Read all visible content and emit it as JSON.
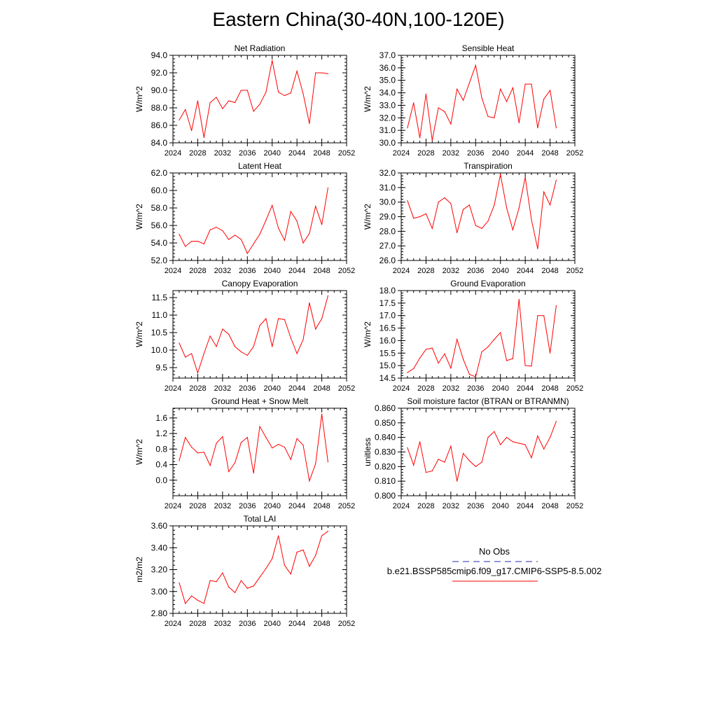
{
  "title": "Eastern China(30-40N,100-120E)",
  "legend": {
    "obs_label": "No Obs",
    "obs_color": "#2a2ab0",
    "model_label": "b.e21.BSSP585cmip6.f09_g17.CMIP6-SSP5-8.5.002",
    "model_color": "#ff0000"
  },
  "chart_data": [
    {
      "type": "line",
      "title": "Net Radiation",
      "ylabel": "W/m^2",
      "xlim": [
        2024,
        2052
      ],
      "xticks": [
        "2024",
        "2028",
        "2032",
        "2036",
        "2040",
        "2044",
        "2048",
        "2052"
      ],
      "ylim": [
        84.0,
        94.0
      ],
      "yticks": [
        "84.0",
        "86.0",
        "88.0",
        "90.0",
        "92.0",
        "94.0"
      ],
      "x": [
        2025,
        2026,
        2027,
        2028,
        2029,
        2030,
        2031,
        2032,
        2033,
        2034,
        2035,
        2036,
        2037,
        2038,
        2039,
        2040,
        2041,
        2042,
        2043,
        2044,
        2045,
        2046,
        2047,
        2048,
        2049
      ],
      "values": [
        86.6,
        87.8,
        85.4,
        88.8,
        84.6,
        88.6,
        89.2,
        87.9,
        88.8,
        88.6,
        90.0,
        90.0,
        87.6,
        88.4,
        89.8,
        93.4,
        89.8,
        89.4,
        89.7,
        92.2,
        89.6,
        86.2,
        92.0,
        92.0,
        91.9
      ],
      "color": "#ff0000"
    },
    {
      "type": "line",
      "title": "Sensible Heat",
      "ylabel": "W/m^2",
      "xlim": [
        2024,
        2052
      ],
      "xticks": [
        "2024",
        "2028",
        "2032",
        "2036",
        "2040",
        "2044",
        "2048",
        "2052"
      ],
      "ylim": [
        30.0,
        37.0
      ],
      "yticks": [
        "30.0",
        "31.0",
        "32.0",
        "33.0",
        "34.0",
        "35.0",
        "36.0",
        "37.0"
      ],
      "x": [
        2025,
        2026,
        2027,
        2028,
        2029,
        2030,
        2031,
        2032,
        2033,
        2034,
        2035,
        2036,
        2037,
        2038,
        2039,
        2040,
        2041,
        2042,
        2043,
        2044,
        2045,
        2046,
        2047,
        2048,
        2049
      ],
      "values": [
        31.2,
        33.2,
        30.4,
        33.9,
        30.2,
        32.8,
        32.5,
        31.5,
        34.3,
        33.4,
        34.8,
        36.2,
        33.6,
        32.1,
        32.0,
        34.3,
        33.3,
        34.4,
        31.6,
        34.7,
        34.7,
        31.2,
        33.5,
        34.2,
        31.2
      ],
      "color": "#ff0000"
    },
    {
      "type": "line",
      "title": "Latent Heat",
      "ylabel": "W/m^2",
      "xlim": [
        2024,
        2052
      ],
      "xticks": [
        "2024",
        "2028",
        "2032",
        "2036",
        "2040",
        "2044",
        "2048",
        "2052"
      ],
      "ylim": [
        52.0,
        62.0
      ],
      "yticks": [
        "52.0",
        "54.0",
        "56.0",
        "58.0",
        "60.0",
        "62.0"
      ],
      "x": [
        2025,
        2026,
        2027,
        2028,
        2029,
        2030,
        2031,
        2032,
        2033,
        2034,
        2035,
        2036,
        2037,
        2038,
        2039,
        2040,
        2041,
        2042,
        2043,
        2044,
        2045,
        2046,
        2047,
        2048,
        2049
      ],
      "values": [
        55.0,
        53.6,
        54.2,
        54.2,
        53.9,
        55.5,
        55.8,
        55.4,
        54.4,
        54.9,
        54.4,
        52.8,
        53.9,
        55.0,
        56.6,
        58.3,
        55.7,
        54.3,
        57.6,
        56.5,
        54.0,
        55.1,
        58.2,
        56.1,
        60.3
      ],
      "color": "#ff0000"
    },
    {
      "type": "line",
      "title": "Transpiration",
      "ylabel": "W/m^2",
      "xlim": [
        2024,
        2052
      ],
      "xticks": [
        "2024",
        "2028",
        "2032",
        "2036",
        "2040",
        "2044",
        "2048",
        "2052"
      ],
      "ylim": [
        26.0,
        32.0
      ],
      "yticks": [
        "26.0",
        "27.0",
        "28.0",
        "29.0",
        "30.0",
        "31.0",
        "32.0"
      ],
      "x": [
        2025,
        2026,
        2027,
        2028,
        2029,
        2030,
        2031,
        2032,
        2033,
        2034,
        2035,
        2036,
        2037,
        2038,
        2039,
        2040,
        2041,
        2042,
        2043,
        2044,
        2045,
        2046,
        2047,
        2048,
        2049
      ],
      "values": [
        30.1,
        28.9,
        29.0,
        29.2,
        28.2,
        30.0,
        30.3,
        29.9,
        27.9,
        29.5,
        29.8,
        28.4,
        28.2,
        28.7,
        29.8,
        31.9,
        29.6,
        28.1,
        29.6,
        31.7,
        28.8,
        26.8,
        30.7,
        29.8,
        31.5
      ],
      "color": "#ff0000"
    },
    {
      "type": "line",
      "title": "Canopy Evaporation",
      "ylabel": "W/m^2",
      "xlim": [
        2024,
        2052
      ],
      "xticks": [
        "2024",
        "2028",
        "2032",
        "2036",
        "2040",
        "2044",
        "2048",
        "2052"
      ],
      "ylim": [
        9.2,
        11.7
      ],
      "yticks": [
        "9.5",
        "10.0",
        "10.5",
        "11.0",
        "11.5"
      ],
      "ytick_values": [
        9.5,
        10.0,
        10.5,
        11.0,
        11.5
      ],
      "x": [
        2025,
        2026,
        2027,
        2028,
        2029,
        2030,
        2031,
        2032,
        2033,
        2034,
        2035,
        2036,
        2037,
        2038,
        2039,
        2040,
        2041,
        2042,
        2043,
        2044,
        2045,
        2046,
        2047,
        2048,
        2049
      ],
      "values": [
        10.2,
        9.8,
        9.9,
        9.35,
        9.9,
        10.4,
        10.1,
        10.6,
        10.45,
        10.1,
        9.95,
        9.85,
        10.1,
        10.7,
        10.9,
        10.1,
        10.9,
        10.87,
        10.35,
        9.9,
        10.3,
        11.35,
        10.6,
        10.9,
        11.55
      ],
      "color": "#ff0000"
    },
    {
      "type": "line",
      "title": "Ground Evaporation",
      "ylabel": "W/m^2",
      "xlim": [
        2024,
        2052
      ],
      "xticks": [
        "2024",
        "2028",
        "2032",
        "2036",
        "2040",
        "2044",
        "2048",
        "2052"
      ],
      "ylim": [
        14.5,
        18.0
      ],
      "yticks": [
        "14.5",
        "15.0",
        "15.5",
        "16.0",
        "16.5",
        "17.0",
        "17.5",
        "18.0"
      ],
      "x": [
        2025,
        2026,
        2027,
        2028,
        2029,
        2030,
        2031,
        2032,
        2033,
        2034,
        2035,
        2036,
        2037,
        2038,
        2039,
        2040,
        2041,
        2042,
        2043,
        2044,
        2045,
        2046,
        2047,
        2048,
        2049
      ],
      "values": [
        14.72,
        14.88,
        15.3,
        15.65,
        15.7,
        15.1,
        15.47,
        14.9,
        16.05,
        15.25,
        14.65,
        14.55,
        15.55,
        15.75,
        16.05,
        16.32,
        15.2,
        15.28,
        17.65,
        15.0,
        14.98,
        17.0,
        17.0,
        15.5,
        17.4
      ],
      "color": "#ff0000"
    },
    {
      "type": "line",
      "title": "Ground Heat + Snow Melt",
      "ylabel": "W/m^2",
      "xlim": [
        2024,
        2052
      ],
      "xticks": [
        "2024",
        "2028",
        "2032",
        "2036",
        "2040",
        "2044",
        "2048",
        "2052"
      ],
      "ylim": [
        -0.4,
        1.85
      ],
      "yticks": [
        "0.0",
        "0.4",
        "0.8",
        "1.2",
        "1.6"
      ],
      "ytick_values": [
        0.0,
        0.4,
        0.8,
        1.2,
        1.6
      ],
      "x": [
        2025,
        2026,
        2027,
        2028,
        2029,
        2030,
        2031,
        2032,
        2033,
        2034,
        2035,
        2036,
        2037,
        2038,
        2039,
        2040,
        2041,
        2042,
        2043,
        2044,
        2045,
        2046,
        2047,
        2048,
        2049
      ],
      "values": [
        0.5,
        1.1,
        0.85,
        0.7,
        0.72,
        0.38,
        0.95,
        1.12,
        0.22,
        0.45,
        0.97,
        1.1,
        0.18,
        1.38,
        1.1,
        0.83,
        0.92,
        0.85,
        0.53,
        1.07,
        0.9,
        -0.02,
        0.42,
        1.7,
        0.47
      ],
      "color": "#ff0000"
    },
    {
      "type": "line",
      "title": "Soil moisture factor (BTRAN or BTRANMN)",
      "ylabel": "unitless",
      "xlim": [
        2024,
        2052
      ],
      "xticks": [
        "2024",
        "2028",
        "2032",
        "2036",
        "2040",
        "2044",
        "2048",
        "2052"
      ],
      "ylim": [
        0.8,
        0.86
      ],
      "yticks": [
        "0.800",
        "0.810",
        "0.820",
        "0.830",
        "0.840",
        "0.850",
        "0.860"
      ],
      "x": [
        2025,
        2026,
        2027,
        2028,
        2029,
        2030,
        2031,
        2032,
        2033,
        2034,
        2035,
        2036,
        2037,
        2038,
        2039,
        2040,
        2041,
        2042,
        2043,
        2044,
        2045,
        2046,
        2047,
        2048,
        2049
      ],
      "values": [
        0.833,
        0.821,
        0.837,
        0.816,
        0.817,
        0.825,
        0.823,
        0.834,
        0.81,
        0.829,
        0.824,
        0.82,
        0.823,
        0.84,
        0.844,
        0.835,
        0.84,
        0.837,
        0.836,
        0.835,
        0.826,
        0.841,
        0.832,
        0.84,
        0.851
      ],
      "color": "#ff0000"
    },
    {
      "type": "line",
      "title": "Total LAI",
      "ylabel": "m2/m2",
      "xlim": [
        2024,
        2052
      ],
      "xticks": [
        "2024",
        "2028",
        "2032",
        "2036",
        "2040",
        "2044",
        "2048",
        "2052"
      ],
      "ylim": [
        2.8,
        3.6
      ],
      "yticks": [
        "2.80",
        "3.00",
        "3.20",
        "3.40",
        "3.60"
      ],
      "x": [
        2025,
        2026,
        2027,
        2028,
        2029,
        2030,
        2031,
        2032,
        2033,
        2034,
        2035,
        2036,
        2037,
        2038,
        2039,
        2040,
        2041,
        2042,
        2043,
        2044,
        2045,
        2046,
        2047,
        2048,
        2049
      ],
      "values": [
        3.08,
        2.89,
        2.96,
        2.92,
        2.89,
        3.1,
        3.09,
        3.17,
        3.04,
        2.99,
        3.1,
        3.03,
        3.05,
        3.13,
        3.21,
        3.3,
        3.51,
        3.24,
        3.16,
        3.36,
        3.38,
        3.23,
        3.33,
        3.51,
        3.55
      ],
      "color": "#ff0000"
    }
  ]
}
